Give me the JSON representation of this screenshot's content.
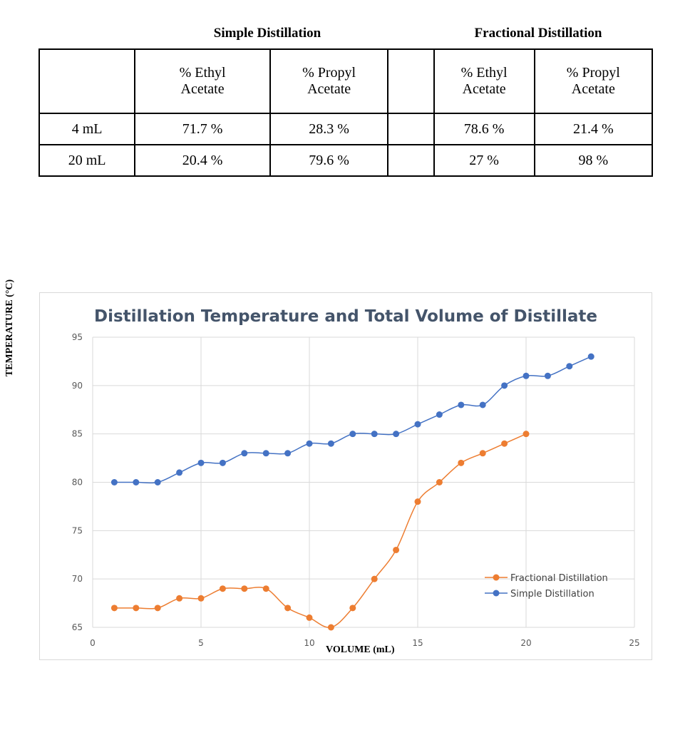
{
  "table": {
    "group_headers": {
      "simple": "Simple Distillation",
      "fractional": "Fractional Distillation"
    },
    "column_headers": [
      "",
      "% Ethyl Acetate",
      "% Propyl Acetate",
      "",
      "% Ethyl Acetate",
      "% Propyl Acetate"
    ],
    "rows": [
      [
        "4 mL",
        "71.7 %",
        "28.3 %",
        "",
        "78.6 %",
        "21.4 %"
      ],
      [
        "20 mL",
        "20.4 %",
        "79.6 %",
        "",
        "27 %",
        "98 %"
      ]
    ]
  },
  "chart_data": {
    "type": "line",
    "title": "Distillation Temperature and Total Volume of Distillate",
    "xlabel": "VOLUME (mL)",
    "ylabel": "TEMPERATURE (°C)",
    "xlim": [
      0,
      25
    ],
    "ylim": [
      65,
      95
    ],
    "xticks": [
      0,
      5,
      10,
      15,
      20,
      25
    ],
    "yticks": [
      65,
      70,
      75,
      80,
      85,
      90,
      95
    ],
    "grid": true,
    "legend_position": "right",
    "series": [
      {
        "name": "Fractional Distillation",
        "color": "#ed7d31",
        "x": [
          1,
          2,
          3,
          4,
          5,
          6,
          7,
          8,
          9,
          10,
          11,
          12,
          13,
          14,
          15,
          16,
          17,
          18,
          19,
          20
        ],
        "y": [
          67,
          67,
          67,
          68,
          68,
          69,
          69,
          69,
          67,
          66,
          65,
          67,
          70,
          73,
          78,
          80,
          82,
          83,
          84,
          85
        ]
      },
      {
        "name": "Simple Distillation",
        "color": "#4472c4",
        "x": [
          1,
          2,
          3,
          4,
          5,
          6,
          7,
          8,
          9,
          10,
          11,
          12,
          13,
          14,
          15,
          16,
          17,
          18,
          19,
          20,
          21,
          22,
          23
        ],
        "y": [
          80,
          80,
          80,
          81,
          82,
          82,
          83,
          83,
          83,
          84,
          84,
          85,
          85,
          85,
          86,
          87,
          88,
          88,
          90,
          91,
          91,
          92,
          93
        ]
      }
    ]
  }
}
